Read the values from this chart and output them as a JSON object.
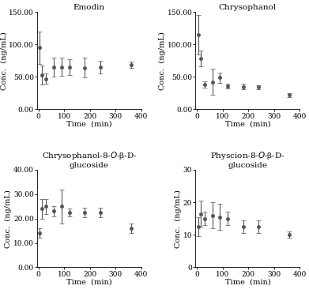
{
  "panels": [
    {
      "title": "Emodin",
      "title_italic_parts": [],
      "ylabel": "Conc.  (ng/mL)",
      "xlabel": "Time  (min)",
      "ylim": [
        0,
        150
      ],
      "yticks": [
        0.0,
        50.0,
        100.0,
        150.0
      ],
      "ytick_labels": [
        "0.00",
        "50.00",
        "100.00",
        "150.00"
      ],
      "xlim": [
        -5,
        400
      ],
      "xticks": [
        0,
        100,
        200,
        300,
        400
      ],
      "time": [
        5,
        15,
        30,
        60,
        90,
        120,
        180,
        240,
        360
      ],
      "mean": [
        95,
        53,
        47,
        65,
        65,
        65,
        64,
        65,
        69
      ],
      "sd": [
        25,
        15,
        8,
        15,
        14,
        12,
        15,
        10,
        5
      ]
    },
    {
      "title": "Chrysophanol",
      "title_italic_parts": [],
      "ylabel": "Conc.  (ng/mL)",
      "xlabel": "Time  (min)",
      "ylim": [
        0,
        150
      ],
      "yticks": [
        0.0,
        50.0,
        100.0,
        150.0
      ],
      "ytick_labels": [
        "0.00",
        "50.00",
        "100.00",
        "150.00"
      ],
      "xlim": [
        -5,
        400
      ],
      "xticks": [
        0,
        100,
        200,
        300,
        400
      ],
      "time": [
        5,
        15,
        30,
        60,
        90,
        120,
        180,
        240,
        360
      ],
      "mean": [
        115,
        78,
        38,
        42,
        49,
        36,
        35,
        34,
        22
      ],
      "sd": [
        30,
        12,
        5,
        20,
        8,
        4,
        4,
        3,
        3
      ]
    },
    {
      "title": "Chrysophanol-8-$O$-β-D-\nglucoside",
      "ylabel": "Conc.  (ng/mL)",
      "xlabel": "Time  (min)",
      "ylim": [
        0,
        40
      ],
      "yticks": [
        0.0,
        10.0,
        20.0,
        30.0,
        40.0
      ],
      "ytick_labels": [
        "0.00",
        "10.00",
        "20.00",
        "30.00",
        "40.00"
      ],
      "xlim": [
        -5,
        400
      ],
      "xticks": [
        0,
        100,
        200,
        300,
        400
      ],
      "time": [
        5,
        15,
        30,
        60,
        90,
        120,
        180,
        240,
        360
      ],
      "mean": [
        14,
        24,
        25,
        23,
        25,
        22.5,
        22.5,
        22.5,
        16
      ],
      "sd": [
        2,
        4,
        3,
        2,
        7,
        1.5,
        2,
        2,
        2
      ]
    },
    {
      "title": "Physcion-8-$O$-β-D-\nglucoside",
      "ylabel": "Conc.  (ng/mL)",
      "xlabel": "Time  (min)",
      "ylim": [
        0,
        30
      ],
      "yticks": [
        0,
        10,
        20,
        30
      ],
      "ytick_labels": [
        "0",
        "10",
        "20",
        "30"
      ],
      "xlim": [
        -5,
        400
      ],
      "xticks": [
        0,
        100,
        200,
        300,
        400
      ],
      "time": [
        5,
        15,
        30,
        60,
        90,
        120,
        180,
        240,
        360
      ],
      "mean": [
        12.5,
        16.5,
        15,
        16,
        15.5,
        15,
        12.5,
        12.5,
        10
      ],
      "sd": [
        3,
        4,
        2,
        4,
        4,
        2,
        2,
        2,
        1
      ]
    }
  ],
  "line_color": "#555555",
  "marker": "o",
  "markersize": 3,
  "linewidth": 1.0,
  "capsize": 2,
  "elinewidth": 0.8,
  "title_fontsize": 7.5,
  "label_fontsize": 7,
  "tick_fontsize": 6.5
}
